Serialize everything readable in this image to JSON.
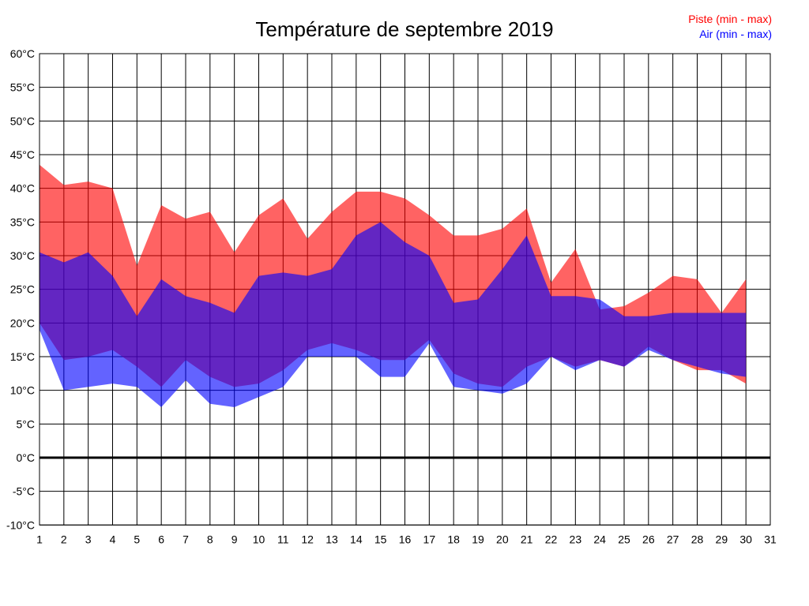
{
  "title": "Température de septembre 2019",
  "legend": {
    "piste_label": "Piste (min - max)",
    "air_label": "Air (min - max)",
    "piste_color": "#ff0000",
    "air_color": "#0000ff"
  },
  "colors": {
    "piste_fill": "#ff0000",
    "air_fill": "#0000ff",
    "fill_opacity": 0.61,
    "grid_line": "#000000",
    "zero_line": "#000000",
    "text": "#000000"
  },
  "chart_data": {
    "type": "area",
    "title": "Température de septembre 2019",
    "xlabel": "",
    "ylabel": "",
    "xlim": [
      1,
      31
    ],
    "ylim": [
      -10,
      60
    ],
    "y_tick_step": 5,
    "grid": true,
    "zero_line_bold": true,
    "legend_position": "top-right",
    "x": [
      1,
      2,
      3,
      4,
      5,
      6,
      7,
      8,
      9,
      10,
      11,
      12,
      13,
      14,
      15,
      16,
      17,
      18,
      19,
      20,
      21,
      22,
      23,
      24,
      25,
      26,
      27,
      28,
      29,
      30
    ],
    "series": [
      {
        "name": "Piste (min - max)",
        "color": "#ff0000",
        "max": [
          43.5,
          40.5,
          41,
          40,
          28.5,
          37.5,
          35.5,
          36.5,
          30.5,
          36,
          38.5,
          32.5,
          36.5,
          39.5,
          39.5,
          38.5,
          36,
          33,
          33,
          34,
          37,
          26,
          31,
          22,
          22.5,
          24.5,
          27,
          26.5,
          21.5,
          26.5
        ],
        "min": [
          20,
          14.5,
          15,
          16,
          13.5,
          10.5,
          14.5,
          12,
          10.5,
          11,
          13,
          16,
          17,
          16,
          14.5,
          14.5,
          17.5,
          12.5,
          11,
          10.5,
          13.5,
          15,
          13.5,
          14.5,
          13.5,
          16.5,
          14.5,
          13,
          13,
          11
        ]
      },
      {
        "name": "Air (min - max)",
        "color": "#0000ff",
        "max": [
          30.5,
          29,
          30.5,
          27,
          21,
          26.5,
          24,
          23,
          21.5,
          27,
          27.5,
          27,
          28,
          33,
          35,
          32,
          30,
          23,
          23.5,
          28,
          33,
          24,
          24,
          23.5,
          21,
          21,
          21.5,
          21.5,
          21.5,
          21.5
        ],
        "min": [
          19,
          10,
          10.5,
          11,
          10.5,
          7.5,
          11.5,
          8,
          7.5,
          9,
          10.5,
          15,
          15,
          15,
          12,
          12,
          17,
          10.5,
          10,
          9.5,
          11,
          15,
          13,
          14.5,
          13.5,
          16,
          14.5,
          13.5,
          12.5,
          12
        ]
      }
    ],
    "y_ticks": [
      "60°C",
      "55°C",
      "50°C",
      "45°C",
      "40°C",
      "35°C",
      "30°C",
      "25°C",
      "20°C",
      "15°C",
      "10°C",
      "5°C",
      "0°C",
      "-5°C",
      "-10°C"
    ],
    "x_ticks": [
      "1",
      "2",
      "3",
      "4",
      "5",
      "6",
      "7",
      "8",
      "9",
      "10",
      "11",
      "12",
      "13",
      "14",
      "15",
      "16",
      "17",
      "18",
      "19",
      "20",
      "21",
      "22",
      "23",
      "24",
      "25",
      "26",
      "27",
      "28",
      "29",
      "30",
      "31"
    ]
  }
}
